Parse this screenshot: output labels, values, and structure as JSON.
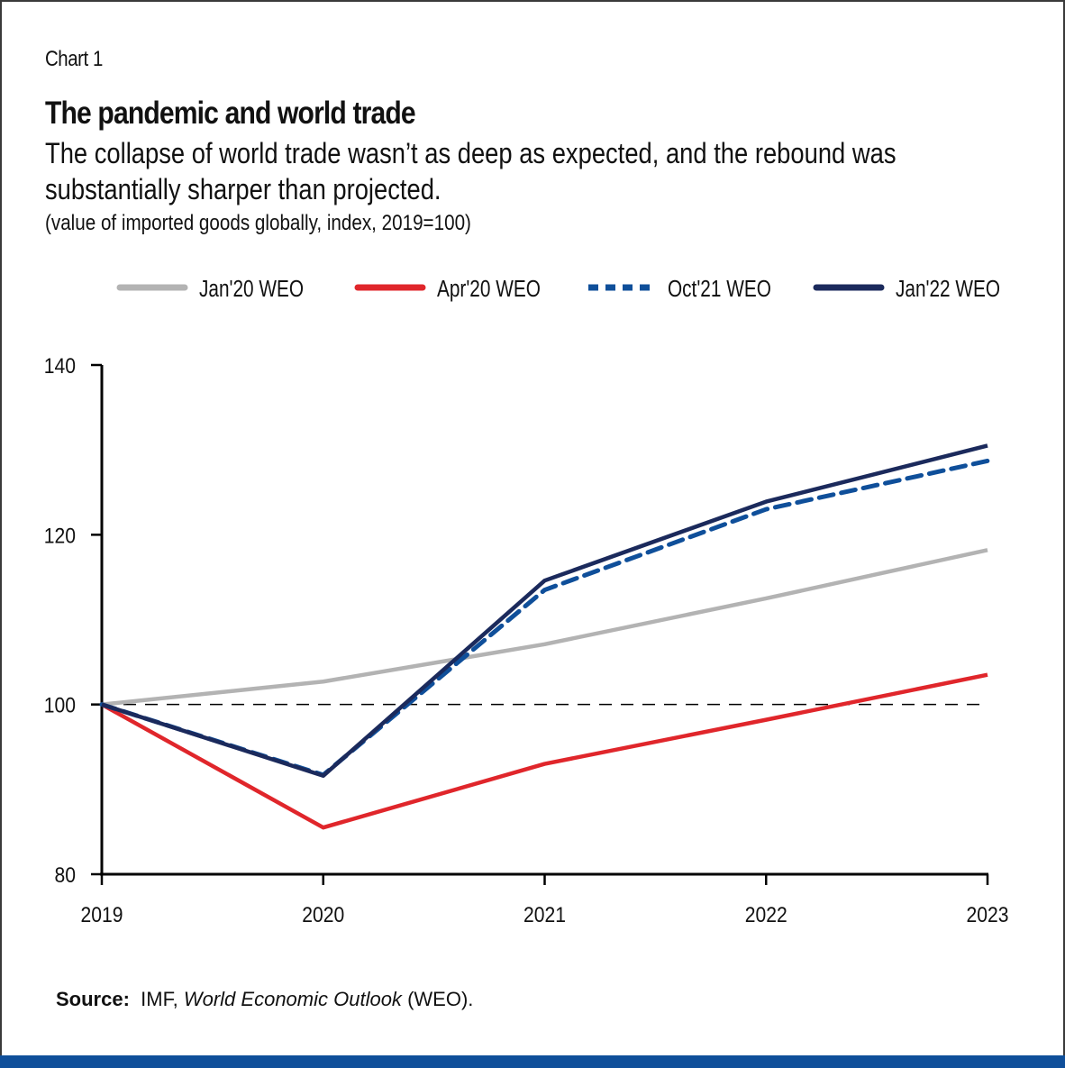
{
  "header": {
    "chart_label": "Chart 1",
    "title": "The pandemic and world trade",
    "subtitle": "The collapse of world trade wasn’t as deep as expected, and the rebound was substantially sharper than projected.",
    "units": "(value of imported goods globally, index, 2019=100)"
  },
  "footer": {
    "source_label": "Source:",
    "source_prefix": "IMF,",
    "source_italic": "World Economic Outlook",
    "source_suffix": "(WEO)."
  },
  "colors": {
    "jan20": "#B3B3B3",
    "apr20": "#E0262B",
    "oct21": "#0F4F9A",
    "jan22": "#1B2A5C",
    "axis": "#000000",
    "bottom_bar": "#0F4F9A"
  },
  "chart_data": {
    "type": "line",
    "title": "The pandemic and world trade",
    "xlabel": "",
    "ylabel": "",
    "categories": [
      "2019",
      "2020",
      "2021",
      "2022",
      "2023"
    ],
    "x": [
      2019,
      2020,
      2021,
      2022,
      2023
    ],
    "ylim": [
      80,
      140
    ],
    "yticks": [
      80,
      100,
      120,
      140
    ],
    "grid": false,
    "legend_position": "top",
    "reference_line": {
      "y": 100,
      "style": "dashed"
    },
    "series": [
      {
        "name": "Jan'20 WEO",
        "style": "solid",
        "color": "#B3B3B3",
        "values": [
          100,
          102.7,
          107.1,
          112.5,
          118.2
        ]
      },
      {
        "name": "Apr'20 WEO",
        "style": "solid",
        "color": "#E0262B",
        "values": [
          100,
          85.5,
          93.0,
          98.2,
          103.5
        ]
      },
      {
        "name": "Oct'21 WEO",
        "style": "dashed",
        "color": "#0F4F9A",
        "values": [
          100,
          91.7,
          113.5,
          123.0,
          128.7
        ]
      },
      {
        "name": "Jan'22 WEO",
        "style": "solid",
        "color": "#1B2A5C",
        "values": [
          100,
          91.6,
          114.6,
          123.9,
          130.5
        ]
      }
    ]
  }
}
